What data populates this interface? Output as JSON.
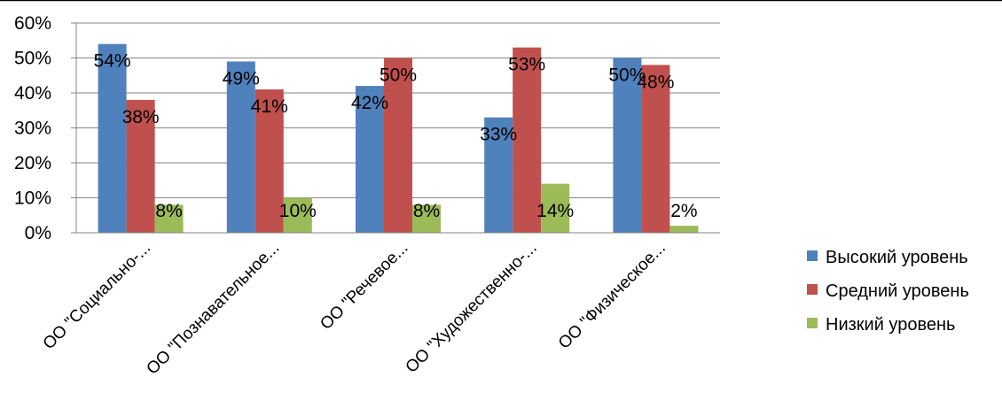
{
  "chart_data": {
    "type": "bar",
    "categories": [
      "ОО \"Социально-...",
      "ОО \"Познавательное...",
      "ОО \"Речевое...",
      "ОО \"Художественно-...",
      "ОО \"Физическое..."
    ],
    "series": [
      {
        "name": "Высокий уровень",
        "values": [
          54,
          49,
          42,
          33,
          50
        ],
        "labels": [
          "54%",
          "49%",
          "42%",
          "33%",
          "50%"
        ]
      },
      {
        "name": "Средний уровень",
        "values": [
          38,
          41,
          50,
          53,
          48
        ],
        "labels": [
          "38%",
          "41%",
          "50%",
          "53%",
          "48%"
        ]
      },
      {
        "name": "Низкий уровень",
        "values": [
          8,
          10,
          8,
          14,
          2
        ],
        "labels": [
          "8%",
          "10%",
          "8%",
          "14%",
          "2%"
        ]
      }
    ],
    "colors": [
      "#4F81BD",
      "#C0504D",
      "#9BBB59"
    ],
    "ylim": [
      0,
      60
    ],
    "yticks": [
      "0%",
      "10%",
      "20%",
      "30%",
      "40%",
      "50%",
      "60%"
    ],
    "grid": true,
    "legend_position": "right"
  }
}
